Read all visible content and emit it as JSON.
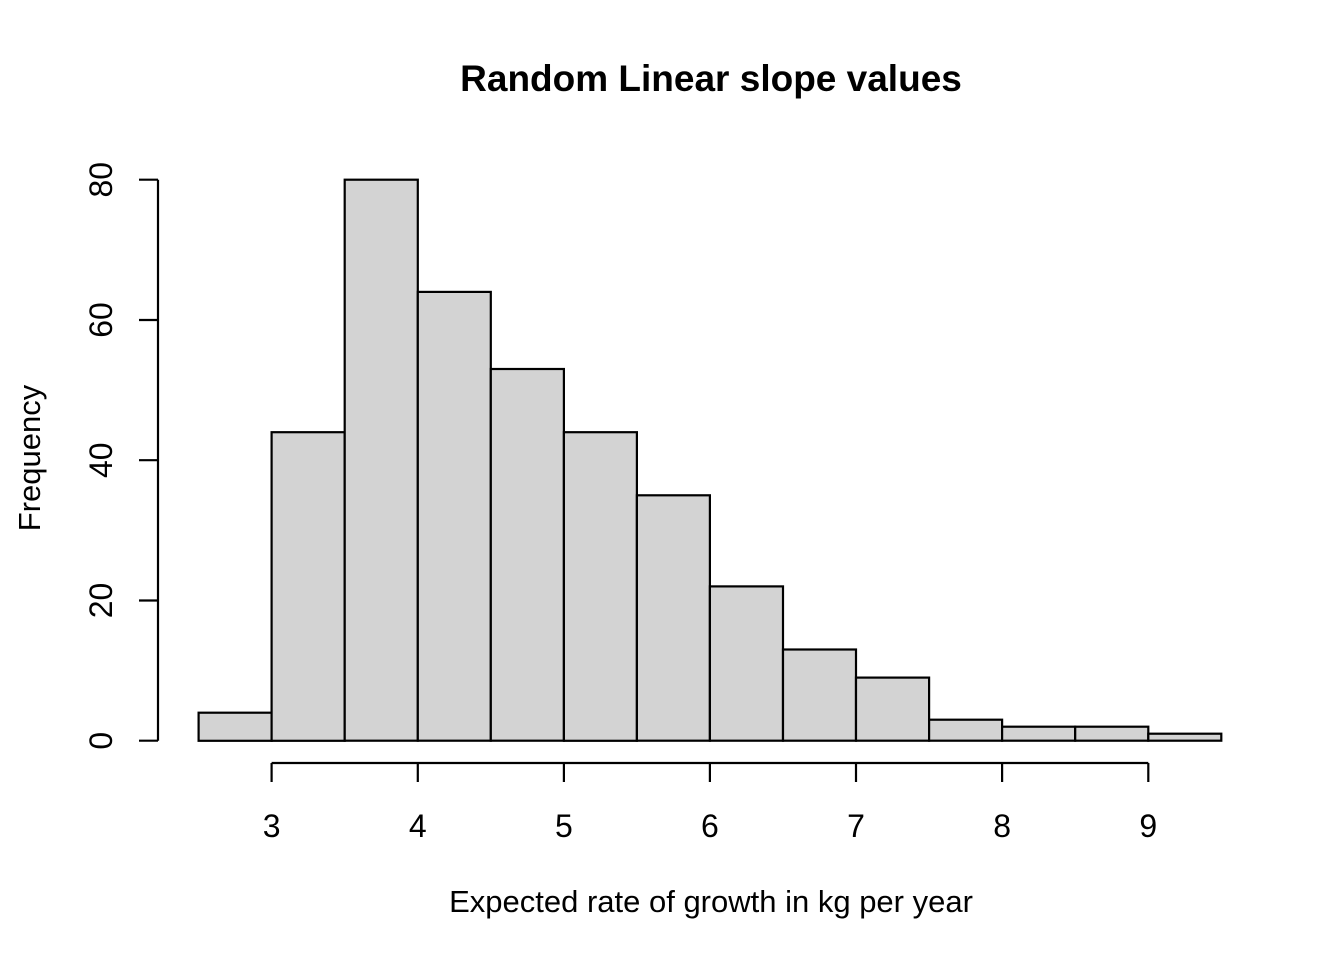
{
  "page": {
    "background": "#ffffff"
  },
  "chart_data": {
    "type": "bar",
    "subtype": "histogram",
    "title": "Random Linear slope values",
    "xlabel": "Expected rate of growth in kg per year",
    "ylabel": "Frequency",
    "bin_edges": [
      2.5,
      3.0,
      3.5,
      4.0,
      4.5,
      5.0,
      5.5,
      6.0,
      6.5,
      7.0,
      7.5,
      8.0,
      8.5,
      9.0,
      9.5
    ],
    "counts": [
      4,
      44,
      80,
      64,
      53,
      44,
      35,
      22,
      13,
      9,
      3,
      2,
      2,
      1
    ],
    "x_tick_values": [
      3,
      4,
      5,
      6,
      7,
      8,
      9
    ],
    "x_tick_labels": [
      "3",
      "4",
      "5",
      "6",
      "7",
      "8",
      "9"
    ],
    "y_tick_values": [
      0,
      20,
      40,
      60,
      80
    ],
    "y_tick_labels": [
      "0",
      "20",
      "40",
      "60",
      "80"
    ],
    "xlim": [
      2.5,
      9.5
    ],
    "ylim": [
      0,
      80
    ],
    "grid": false,
    "legend": null,
    "colors": {
      "bar_fill": "#d3d3d3",
      "bar_stroke": "#000000",
      "axis": "#000000",
      "text": "#000000"
    }
  }
}
